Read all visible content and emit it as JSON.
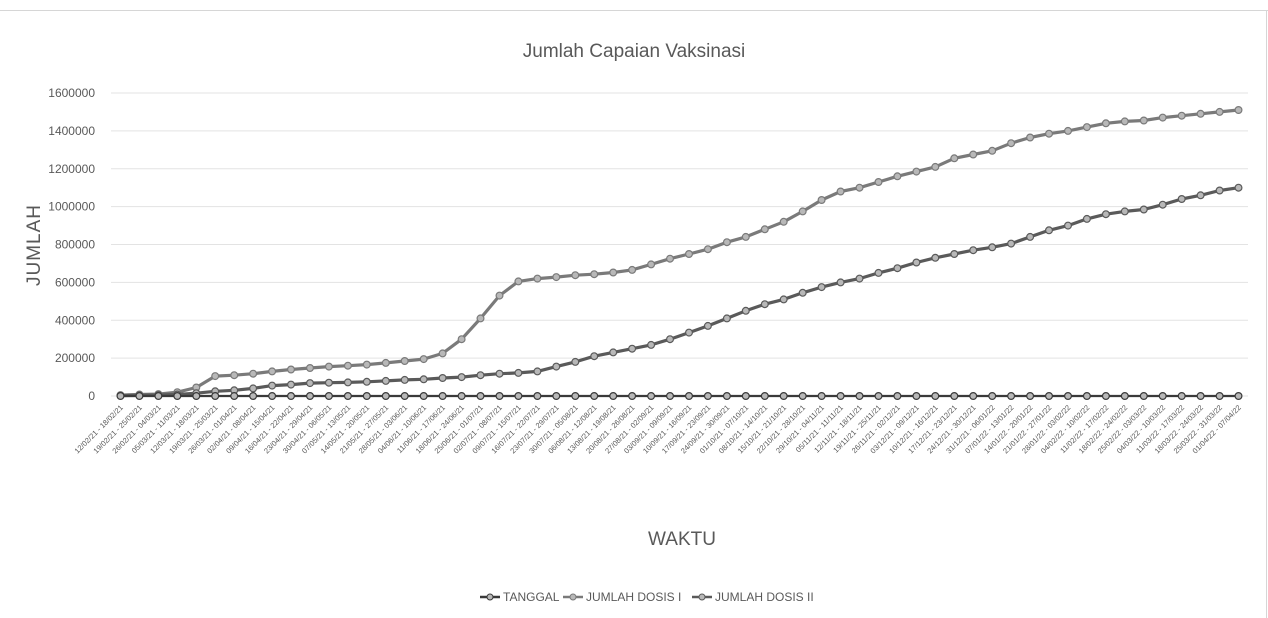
{
  "chart_data": {
    "type": "line",
    "title": "Jumlah Capaian Vaksinasi",
    "xlabel": "WAKTU",
    "ylabel": "JUMLAH",
    "ylim": [
      0,
      1600000
    ],
    "yticks": [
      0,
      200000,
      400000,
      600000,
      800000,
      1000000,
      1200000,
      1400000,
      1600000
    ],
    "grid": true,
    "legend": "bottom",
    "categories": [
      "12/02/21 - 18/02/21",
      "19/02/21 - 25/02/21",
      "26/02/21 - 04/03/21",
      "05/03/21 - 11/03/21",
      "12/03/21 - 18/03/21",
      "19/03/21 - 25/03/21",
      "26/03/21 - 01/04/21",
      "02/04/21 - 08/04/21",
      "09/04/21 - 15/04/21",
      "16/04/21 - 22/04/21",
      "23/04/21 - 29/04/21",
      "30/04/21 - 06/05/21",
      "07/05/21 - 13/05/21",
      "14/05/21 - 20/05/21",
      "21/05/21 - 27/05/21",
      "28/05/21 - 03/06/21",
      "04/06/21 - 10/06/21",
      "11/06/21 - 17/06/21",
      "18/06/21 - 24/06/21",
      "25/06/21 - 01/07/21",
      "02/07/21 - 08/07/21",
      "09/07/21 - 15/07/21",
      "16/07/21 - 22/07/21",
      "23/07/21 - 29/07/21",
      "30/07/21 - 05/08/21",
      "06/08/21 - 12/08/21",
      "13/08/21 - 19/08/21",
      "20/08/21 - 26/08/21",
      "27/08/21 - 02/09/21",
      "03/09/21 - 09/09/21",
      "10/09/21 - 16/09/21",
      "17/09/21 - 23/09/21",
      "24/09/21 - 30/09/21",
      "01/10/21 - 07/10/21",
      "08/10/21 - 14/10/21",
      "15/10/21 - 21/10/21",
      "22/10/21 - 28/10/21",
      "29/10/21 - 04/11/21",
      "05/11/21 - 11/11/21",
      "12/11/21 - 18/11/21",
      "19/11/21 - 25/11/21",
      "26/11/21 - 02/12/21",
      "03/12/21 - 09/12/21",
      "10/12/21 - 16/12/21",
      "17/12/21 - 23/12/21",
      "24/12/21 - 30/12/21",
      "31/12/21 - 06/01/22",
      "07/01/22 - 13/01/22",
      "14/01/22 - 20/01/22",
      "21/01/22 - 27/01/22",
      "28/01/22 - 03/02/22",
      "04/02/22 - 10/02/22",
      "11/02/22 - 17/02/22",
      "18/02/22 - 24/02/22",
      "25/02/22 - 03/03/22",
      "04/03/22 - 10/03/22",
      "11/03/22 - 17/03/22",
      "18/03/22 - 24/03/22",
      "25/03/22 - 31/03/22",
      "01/04/22 - 07/04/22"
    ],
    "series": [
      {
        "name": "TANGGAL",
        "color": "#3a3a3a",
        "values": [
          0,
          0,
          0,
          0,
          0,
          0,
          0,
          0,
          0,
          0,
          0,
          0,
          0,
          0,
          0,
          0,
          0,
          0,
          0,
          0,
          0,
          0,
          0,
          0,
          0,
          0,
          0,
          0,
          0,
          0,
          0,
          0,
          0,
          0,
          0,
          0,
          0,
          0,
          0,
          0,
          0,
          0,
          0,
          0,
          0,
          0,
          0,
          0,
          0,
          0,
          0,
          0,
          0,
          0,
          0,
          0,
          0,
          0,
          0,
          0
        ]
      },
      {
        "name": "JUMLAH DOSIS I",
        "color": "#7a7a7a",
        "values": [
          5000,
          8000,
          10000,
          20000,
          45000,
          105000,
          110000,
          118000,
          130000,
          140000,
          148000,
          155000,
          160000,
          166000,
          175000,
          185000,
          195000,
          225000,
          300000,
          410000,
          530000,
          605000,
          620000,
          628000,
          638000,
          643000,
          652000,
          666000,
          695000,
          725000,
          750000,
          775000,
          812000,
          840000,
          880000,
          920000,
          975000,
          1035000,
          1080000,
          1100000,
          1130000,
          1160000,
          1185000,
          1210000,
          1255000,
          1275000,
          1295000,
          1335000,
          1365000,
          1385000,
          1400000,
          1420000,
          1440000,
          1450000,
          1455000,
          1470000,
          1480000,
          1490000,
          1500000,
          1510000
        ]
      },
      {
        "name": "JUMLAH DOSIS II",
        "color": "#5a5a5a",
        "values": [
          2000,
          3000,
          5000,
          8000,
          15000,
          25000,
          30000,
          40000,
          55000,
          60000,
          68000,
          70000,
          72000,
          75000,
          80000,
          85000,
          88000,
          95000,
          100000,
          110000,
          118000,
          122000,
          130000,
          155000,
          180000,
          210000,
          230000,
          250000,
          270000,
          300000,
          335000,
          370000,
          410000,
          450000,
          485000,
          510000,
          545000,
          575000,
          600000,
          620000,
          650000,
          675000,
          705000,
          730000,
          750000,
          770000,
          785000,
          805000,
          840000,
          875000,
          900000,
          935000,
          960000,
          975000,
          985000,
          1010000,
          1040000,
          1060000,
          1085000,
          1100000
        ]
      }
    ]
  }
}
